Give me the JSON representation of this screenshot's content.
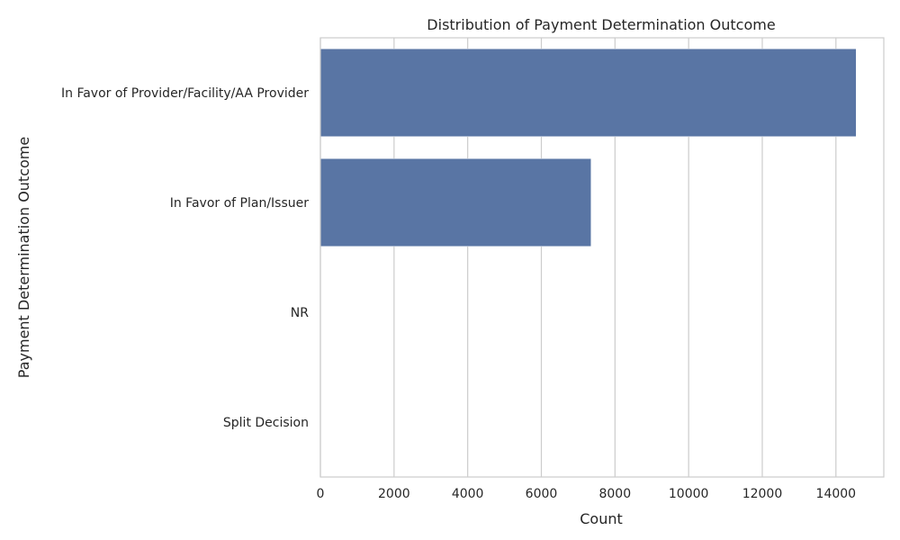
{
  "chart_data": {
    "type": "bar",
    "orientation": "horizontal",
    "title": "Distribution of Payment Determination Outcome",
    "xlabel": "Count",
    "ylabel": "Payment Determination Outcome",
    "categories": [
      "In Favor of Provider/Facility/AA Provider",
      "In Favor of Plan/Issuer",
      "NR",
      "Split Decision"
    ],
    "values": [
      14550,
      7350,
      5,
      5
    ],
    "xlim": [
      0,
      15300
    ],
    "xticks": [
      0,
      2000,
      4000,
      6000,
      8000,
      10000,
      12000,
      14000
    ],
    "grid": true,
    "bar_color": "#5975a4",
    "grid_color": "#cccccc"
  }
}
